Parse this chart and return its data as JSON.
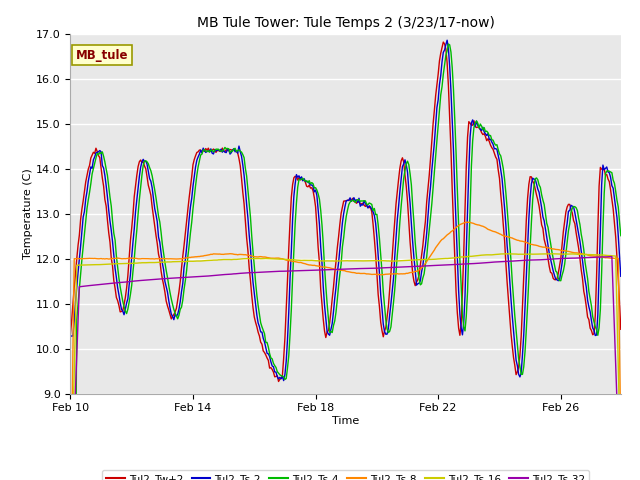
{
  "title": "MB Tule Tower: Tule Temps 2 (3/23/17-now)",
  "xlabel": "Time",
  "ylabel": "Temperature (C)",
  "ylim": [
    9.0,
    17.0
  ],
  "yticks": [
    9.0,
    10.0,
    11.0,
    12.0,
    13.0,
    14.0,
    15.0,
    16.0,
    17.0
  ],
  "bg_color": "#e8e8e8",
  "fig_color": "#ffffff",
  "series": [
    {
      "label": "Tul2_Tw+2",
      "color": "#cc0000"
    },
    {
      "label": "Tul2_Ts-2",
      "color": "#0000cc"
    },
    {
      "label": "Tul2_Ts-4",
      "color": "#00bb00"
    },
    {
      "label": "Tul2_Ts-8",
      "color": "#ff8800"
    },
    {
      "label": "Tul2_Ts-16",
      "color": "#cccc00"
    },
    {
      "label": "Tul2_Ts-32",
      "color": "#9900aa"
    }
  ],
  "xtick_labels": [
    "Feb 10",
    "Feb 14",
    "Feb 18",
    "Feb 22",
    "Feb 26"
  ],
  "xtick_positions": [
    0,
    96,
    192,
    288,
    384
  ],
  "total_points": 432,
  "legend_box_color": "#ffffcc",
  "legend_box_edge": "#999900",
  "legend_text": "MB_tule",
  "legend_text_color": "#880000"
}
